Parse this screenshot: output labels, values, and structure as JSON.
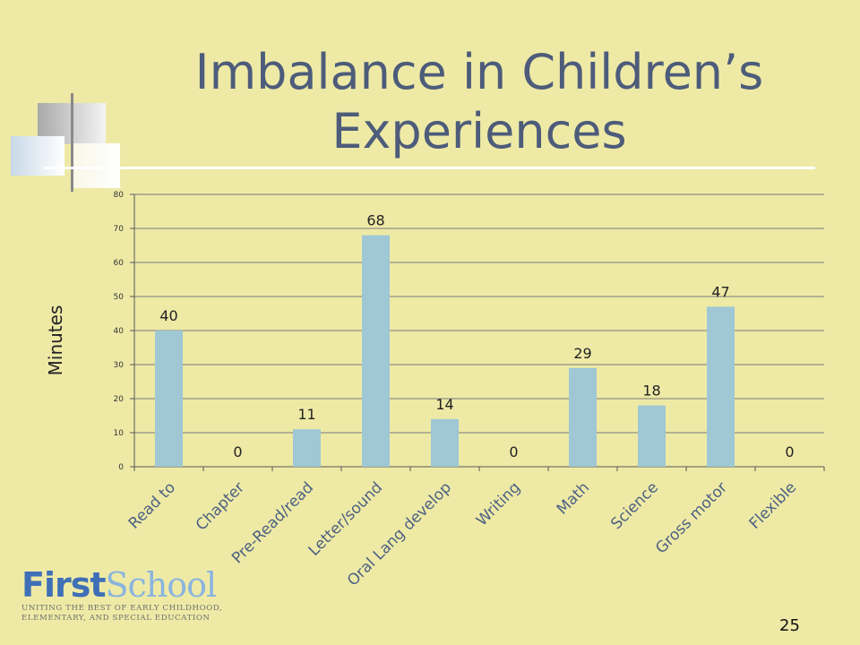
{
  "slide": {
    "title_lines": [
      "Imbalance in Children’s",
      "Experiences"
    ],
    "page_number": "25"
  },
  "logo": {
    "brand_first": "First",
    "brand_second": "School",
    "tagline_line1": "UNITING THE BEST OF EARLY CHILDHOOD,",
    "tagline_line2": "ELEMENTARY, AND SPECIAL EDUCATION"
  },
  "colors": {
    "background": "#eeeaa6",
    "bar": "#9fc7d4",
    "title": "#4d5c7a",
    "logo_first": "#3f6fb6",
    "logo_school": "#8ab4df"
  },
  "chart_data": {
    "type": "bar",
    "title": "",
    "xlabel": "",
    "ylabel": "Minutes",
    "categories": [
      "Read to",
      "Chapter",
      "Pre-Read/read",
      "Letter/sound",
      "Oral Lang develop",
      "Writing",
      "Math",
      "Science",
      "Gross motor",
      "Flexible"
    ],
    "values": [
      40,
      0,
      11,
      68,
      14,
      0,
      29,
      18,
      47,
      0
    ],
    "ylim": [
      0,
      80
    ],
    "yticks": [
      0,
      10,
      20,
      30,
      40,
      50,
      60,
      70,
      80
    ],
    "grid": true,
    "legend": "none"
  }
}
